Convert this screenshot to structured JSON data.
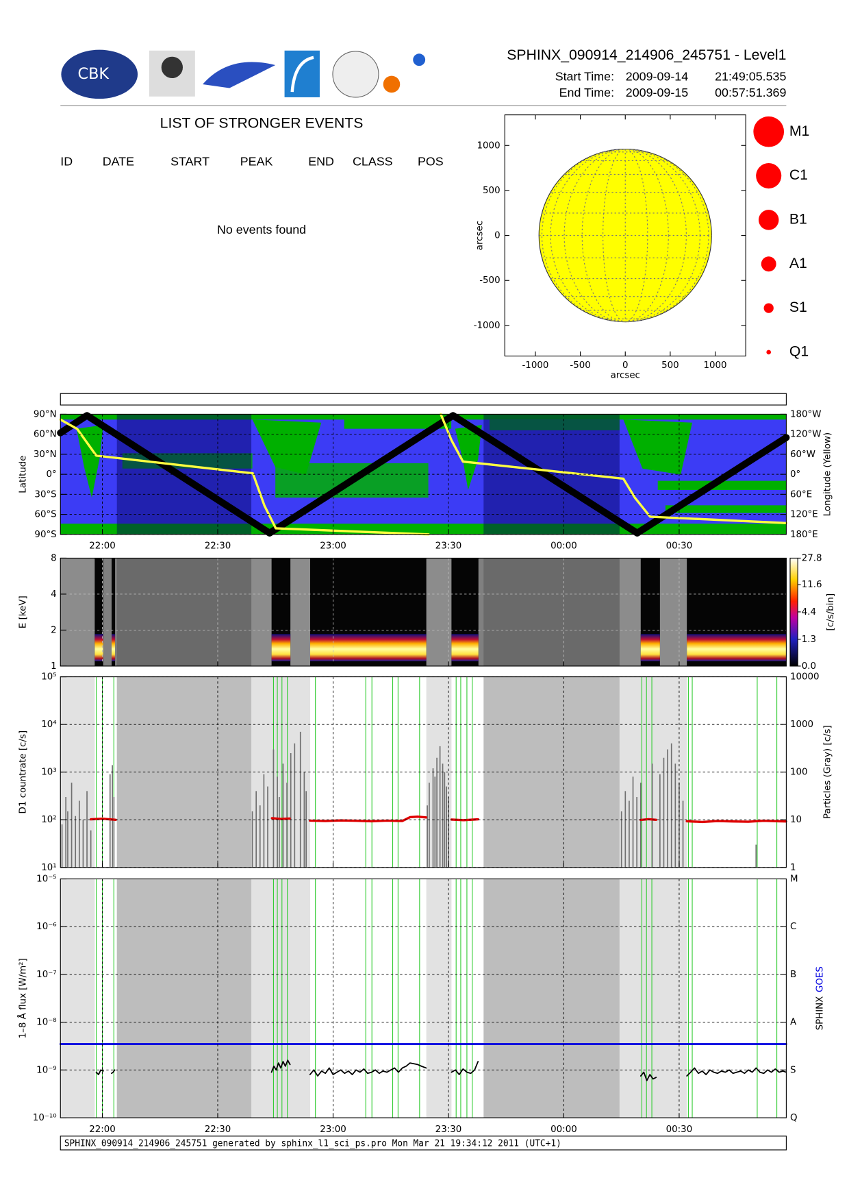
{
  "header": {
    "title": "SPHINX_090914_214906_245751 - Level1",
    "start_label": "Start Time:",
    "start_date": "2009-09-14",
    "start_time": "21:49:05.535",
    "end_label": "End Time:",
    "end_date": "2009-09-15",
    "end_time": "00:57:51.369",
    "logo_text": "CBK"
  },
  "events": {
    "title": "LIST OF STRONGER EVENTS",
    "columns": [
      "ID",
      "DATE",
      "START",
      "PEAK",
      "END",
      "CLASS",
      "POS"
    ],
    "message": "No events found"
  },
  "footer": "SPHINX_090914_214906_245751 generated by sphinx_l1_sci_ps.pro Mon Mar 21 19:34:12 2011 (UTC+1)",
  "chart_data": [
    {
      "type": "map",
      "xlabel": "arcsec",
      "ylabel": "arcsec",
      "xlim": [
        -1340,
        1340
      ],
      "ylim": [
        -1340,
        1340
      ],
      "xticks": [
        -1000,
        -500,
        0,
        500,
        1000
      ],
      "yticks": [
        -1000,
        -500,
        0,
        500,
        1000
      ],
      "disk_radius": 960,
      "color": "#ffff00",
      "legend": [
        "M1",
        "C1",
        "B1",
        "A1",
        "S1",
        "Q1"
      ],
      "legend_color": "#ff0000"
    },
    {
      "type": "line",
      "ylabel": "Latitude",
      "y2label": "Longitude (Yellow)",
      "xlim": [
        49.09,
        237.86
      ],
      "xticks": [
        {
          "value": 60,
          "label": "22:00"
        },
        {
          "value": 90,
          "label": "22:30"
        },
        {
          "value": 120,
          "label": "23:00"
        },
        {
          "value": 150,
          "label": "23:30"
        },
        {
          "value": 180,
          "label": "00:00"
        },
        {
          "value": 210,
          "label": "00:30"
        }
      ],
      "ylim": [
        -90,
        90
      ],
      "yticks": [
        {
          "value": 90,
          "label": "90°N"
        },
        {
          "value": 60,
          "label": "60°N"
        },
        {
          "value": 30,
          "label": "30°N"
        },
        {
          "value": 0,
          "label": "0°"
        },
        {
          "value": -30,
          "label": "30°S"
        },
        {
          "value": -60,
          "label": "60°S"
        },
        {
          "value": -90,
          "label": "90°S"
        }
      ],
      "y2lim": [
        -180,
        180
      ],
      "y2ticks": [
        {
          "value": 180,
          "label": "180°W"
        },
        {
          "value": 120,
          "label": "120°W"
        },
        {
          "value": 60,
          "label": "60°W"
        },
        {
          "value": 0,
          "label": "0°"
        },
        {
          "value": -60,
          "label": "60°E"
        },
        {
          "value": -120,
          "label": "120°E"
        },
        {
          "value": -180,
          "label": "180°E"
        }
      ],
      "grid": true,
      "eclipse": [
        [
          63.77,
          98.74
        ],
        [
          159.14,
          194.5
        ]
      ],
      "series": [
        {
          "color": "#000000",
          "x": [
            49.09,
            56,
            103.5,
            151.2,
            199.1,
            237.86
          ],
          "values": [
            62,
            88,
            -88,
            88,
            -88,
            55
          ]
        },
        {
          "color": "#ffff40",
          "axis": "y2",
          "x": [
            49.09,
            53.44,
            58.41,
            99.14,
            102.12,
            105.1,
            144.83,
            146.4,
            148.01,
            150.79,
            153.77,
            195.5,
            198.48,
            202.45,
            237.86
          ],
          "values": [
            164,
            136,
            56,
            3,
            -93,
            -162,
            -180,
            null,
            180,
            102,
            38,
            -13,
            -70,
            -127,
            -146
          ]
        }
      ]
    },
    {
      "type": "heatmap",
      "ylabel": "E [keV]",
      "log": true,
      "ylim": [
        1,
        8
      ],
      "yticks": [
        1,
        2,
        4,
        8
      ],
      "xlim": [
        49.09,
        237.86
      ],
      "xticks": [
        60,
        90,
        120,
        150,
        180,
        210
      ],
      "grid": true,
      "clabel": "[c/s/bin]",
      "clim": [
        0,
        27.8
      ],
      "cscale": "log1p",
      "cticks": [
        {
          "value": 0,
          "label": "0.0"
        },
        1.3,
        4.4,
        11.6,
        27.8
      ],
      "no_data": [
        [
          49.09,
          58.01
        ],
        [
          98.74,
          114.04
        ],
        [
          144.24,
          150.79
        ],
        [
          194.5,
          211.99
        ]
      ],
      "eclipse": [
        [
          63.77,
          98.74
        ],
        [
          159.14,
          194.5
        ]
      ],
      "intervals": [
        [
          58.01,
          60.2
        ],
        [
          62.4,
          63.3
        ],
        [
          104,
          108.9
        ],
        [
          114.04,
          144.24
        ],
        [
          150.79,
          157.8
        ],
        [
          200,
          205
        ],
        [
          212,
          237.86
        ]
      ],
      "markers": [
        58.41,
        60,
        62.98,
        104.5,
        105.5,
        106.7,
        108.1,
        115.4,
        128.5,
        130.1,
        135.5,
        136.9,
        142.5,
        152,
        153.2,
        154.8,
        156.2,
        200.3,
        201.5,
        202.9,
        212.4,
        213.4,
        230.3,
        235.4
      ]
    },
    {
      "type": "line",
      "ylabel": "D1 countrate [c/s]",
      "y2label": "Particles (Gray) [c/s]",
      "log": true,
      "ylim": [
        10,
        100000
      ],
      "yticks": [
        {
          "value": 10,
          "label": "10¹"
        },
        {
          "value": 100,
          "label": "10²"
        },
        {
          "value": 1000,
          "label": "10³"
        },
        {
          "value": 10000,
          "label": "10⁴"
        },
        {
          "value": 100000,
          "label": "10⁵"
        }
      ],
      "y2lim": [
        1,
        10000
      ],
      "y2ticks": [
        1,
        10,
        100,
        1000,
        10000
      ],
      "xlim": [
        49.09,
        237.86
      ],
      "xticks": [
        60,
        90,
        120,
        150,
        180,
        210
      ],
      "grid": true,
      "no_data": [
        [
          49.09,
          58.01
        ],
        [
          98.74,
          114.04
        ],
        [
          144.24,
          150.79
        ],
        [
          194.5,
          211.99
        ]
      ],
      "eclipse": [
        [
          63.77,
          98.74
        ],
        [
          159.14,
          194.5
        ]
      ],
      "markers": [
        58.41,
        60,
        62.98,
        104.5,
        105.5,
        106.7,
        108.1,
        115.4,
        128.5,
        130.1,
        135.5,
        136.9,
        142.5,
        152,
        153.2,
        154.8,
        156.2,
        200.3,
        201.5,
        202.9,
        212.4,
        213.4,
        230.3,
        235.4
      ],
      "series": [
        {
          "color": "#707070",
          "axis": "y2",
          "mark": "bar",
          "x": [
            49.5,
            50.5,
            51,
            52,
            53,
            54,
            55,
            56,
            57,
            62,
            62.6,
            63,
            99,
            100,
            101,
            102,
            103,
            104.5,
            105.5,
            106,
            107,
            108,
            109,
            110,
            111.5,
            112.5,
            113,
            144.5,
            145,
            146,
            146.5,
            147,
            147.8,
            148.5,
            149,
            149.5,
            150,
            195,
            196,
            197,
            198,
            199,
            200,
            203,
            205,
            206,
            207,
            208,
            209,
            210,
            211,
            230
          ],
          "values": [
            8,
            30,
            15,
            60,
            12,
            25,
            10,
            40,
            6,
            90,
            140,
            30,
            15,
            40,
            20,
            90,
            50,
            300,
            80,
            30,
            150,
            60,
            250,
            400,
            700,
            100,
            40,
            20,
            60,
            120,
            80,
            200,
            350,
            150,
            100,
            50,
            30,
            15,
            40,
            25,
            80,
            30,
            60,
            150,
            90,
            200,
            300,
            400,
            150,
            60,
            25,
            3
          ]
        },
        {
          "color": "#e00000",
          "x": [
            57,
            60,
            63.5,
            80,
            104.1,
            106.5,
            108.7,
            111,
            114,
            118,
            122,
            126,
            130,
            134,
            138,
            140,
            142,
            144.2,
            147,
            150.8,
            154,
            157.7,
            180,
            200,
            202,
            204,
            208,
            212,
            216,
            220,
            224,
            228,
            232,
            236,
            237.8
          ],
          "values": [
            102,
            105,
            100,
            null,
            108,
            104,
            106,
            null,
            96,
            94,
            97,
            95,
            93,
            96,
            94,
            113,
            116,
            112,
            null,
            101,
            98,
            102,
            null,
            99,
            103,
            100,
            null,
            93,
            90,
            94,
            92,
            91,
            95,
            93,
            92
          ]
        }
      ]
    },
    {
      "type": "line",
      "ylabel": "1–8 Å flux [W/m²]",
      "log": true,
      "ylim": [
        1e-10,
        1e-05
      ],
      "yticks": [
        {
          "value": 1e-10,
          "label": "10⁻¹⁰"
        },
        {
          "value": 1e-09,
          "label": "10⁻⁹"
        },
        {
          "value": 1e-08,
          "label": "10⁻⁸"
        },
        {
          "value": 1e-07,
          "label": "10⁻⁷"
        },
        {
          "value": 1e-06,
          "label": "10⁻⁶"
        },
        {
          "value": 1e-05,
          "label": "10⁻⁵"
        }
      ],
      "y2lim": [
        1e-10,
        1e-05
      ],
      "y2ticks": [
        {
          "value": 1e-10,
          "label": "Q"
        },
        {
          "value": 1e-09,
          "label": "S"
        },
        {
          "value": 1e-08,
          "label": "A"
        },
        {
          "value": 1e-07,
          "label": "B"
        },
        {
          "value": 1e-06,
          "label": "C"
        },
        {
          "value": 1e-05,
          "label": "M"
        }
      ],
      "xlim": [
        49.09,
        237.86
      ],
      "xticks": [
        {
          "value": 60,
          "label": "22:00"
        },
        {
          "value": 90,
          "label": "22:30"
        },
        {
          "value": 120,
          "label": "23:00"
        },
        {
          "value": 150,
          "label": "23:30"
        },
        {
          "value": 180,
          "label": "00:00"
        },
        {
          "value": 210,
          "label": "00:30"
        }
      ],
      "grid": true,
      "no_data": [
        [
          49.09,
          58.01
        ],
        [
          98.74,
          114.04
        ],
        [
          144.24,
          150.79
        ],
        [
          194.5,
          211.99
        ]
      ],
      "eclipse": [
        [
          63.77,
          98.74
        ],
        [
          159.14,
          194.5
        ]
      ],
      "markers": [
        58.41,
        60,
        62.98,
        104.5,
        105.5,
        106.7,
        108.1,
        115.4,
        128.5,
        130.1,
        135.5,
        136.9,
        142.5,
        152,
        153.2,
        154.8,
        156.2,
        200.3,
        201.5,
        202.9,
        212.4,
        213.4,
        230.3,
        235.4
      ],
      "series": [
        {
          "name": "SPHINX",
          "color": "#000000",
          "x": [
            58.4,
            59,
            59.6,
            60.2,
            61.3,
            62.4,
            62.8,
            63.2,
            80,
            104,
            104.6,
            105.2,
            105.8,
            106.4,
            107,
            107.6,
            108.2,
            108.8,
            111,
            114,
            115,
            116,
            117,
            118,
            119,
            120,
            121,
            122,
            123,
            124,
            125,
            126,
            127,
            128,
            129,
            130,
            131,
            132,
            133,
            134,
            135,
            136,
            137,
            138,
            139,
            140,
            141,
            142,
            143,
            144.2,
            147,
            150.8,
            151.8,
            152.8,
            153.8,
            154.8,
            155.8,
            156.8,
            157.7,
            180,
            200,
            200.8,
            201.6,
            202.4,
            203.2,
            204,
            208,
            212,
            213,
            214,
            215,
            216,
            217,
            218,
            219,
            220,
            221,
            222,
            223,
            224,
            225,
            226,
            227,
            228,
            229,
            230,
            231,
            232,
            233,
            234,
            235,
            236,
            237,
            237.8
          ],
          "values": [
            9e-10,
            8e-10,
            1e-09,
            9.5e-10,
            null,
            8.5e-10,
            9e-10,
            1e-09,
            null,
            9e-10,
            1.2e-09,
            1e-09,
            1.4e-09,
            1.1e-09,
            1.5e-09,
            1.2e-09,
            1.6e-09,
            1.3e-09,
            null,
            8e-10,
            1e-09,
            7.5e-10,
            9.5e-10,
            8.5e-10,
            1.1e-09,
            8e-10,
            9e-10,
            1e-09,
            8.5e-10,
            9.5e-10,
            8e-10,
            1e-09,
            9e-10,
            1.05e-09,
            8.5e-10,
            9e-10,
            1e-09,
            8.5e-10,
            9.5e-10,
            9e-10,
            1e-09,
            1.1e-09,
            9e-10,
            1.1e-09,
            1.2e-09,
            1.4e-09,
            1.35e-09,
            1.3e-09,
            1.2e-09,
            1.1e-09,
            null,
            9e-10,
            1e-09,
            8e-10,
            1.05e-09,
            9e-10,
            8.5e-10,
            1e-09,
            1.5e-09,
            null,
            7.5e-10,
            9e-10,
            6e-10,
            8e-10,
            6.5e-10,
            7e-10,
            null,
            7.5e-10,
            9e-10,
            1.1e-09,
            8.5e-10,
            9.5e-10,
            8e-10,
            1e-09,
            9e-10,
            8.5e-10,
            9.5e-10,
            9e-10,
            1e-09,
            8.5e-10,
            9e-10,
            9.5e-10,
            8.5e-10,
            1e-09,
            9e-10,
            1.1e-09,
            9e-10,
            8.5e-10,
            1e-09,
            9e-10,
            1.05e-09,
            9e-10,
            9.5e-10,
            9e-10
          ]
        },
        {
          "name": "GOES",
          "color": "#0000e0",
          "x": [
            49.09,
            237.86
          ],
          "values": [
            3.5e-09,
            3.5e-09
          ]
        }
      ]
    }
  ]
}
